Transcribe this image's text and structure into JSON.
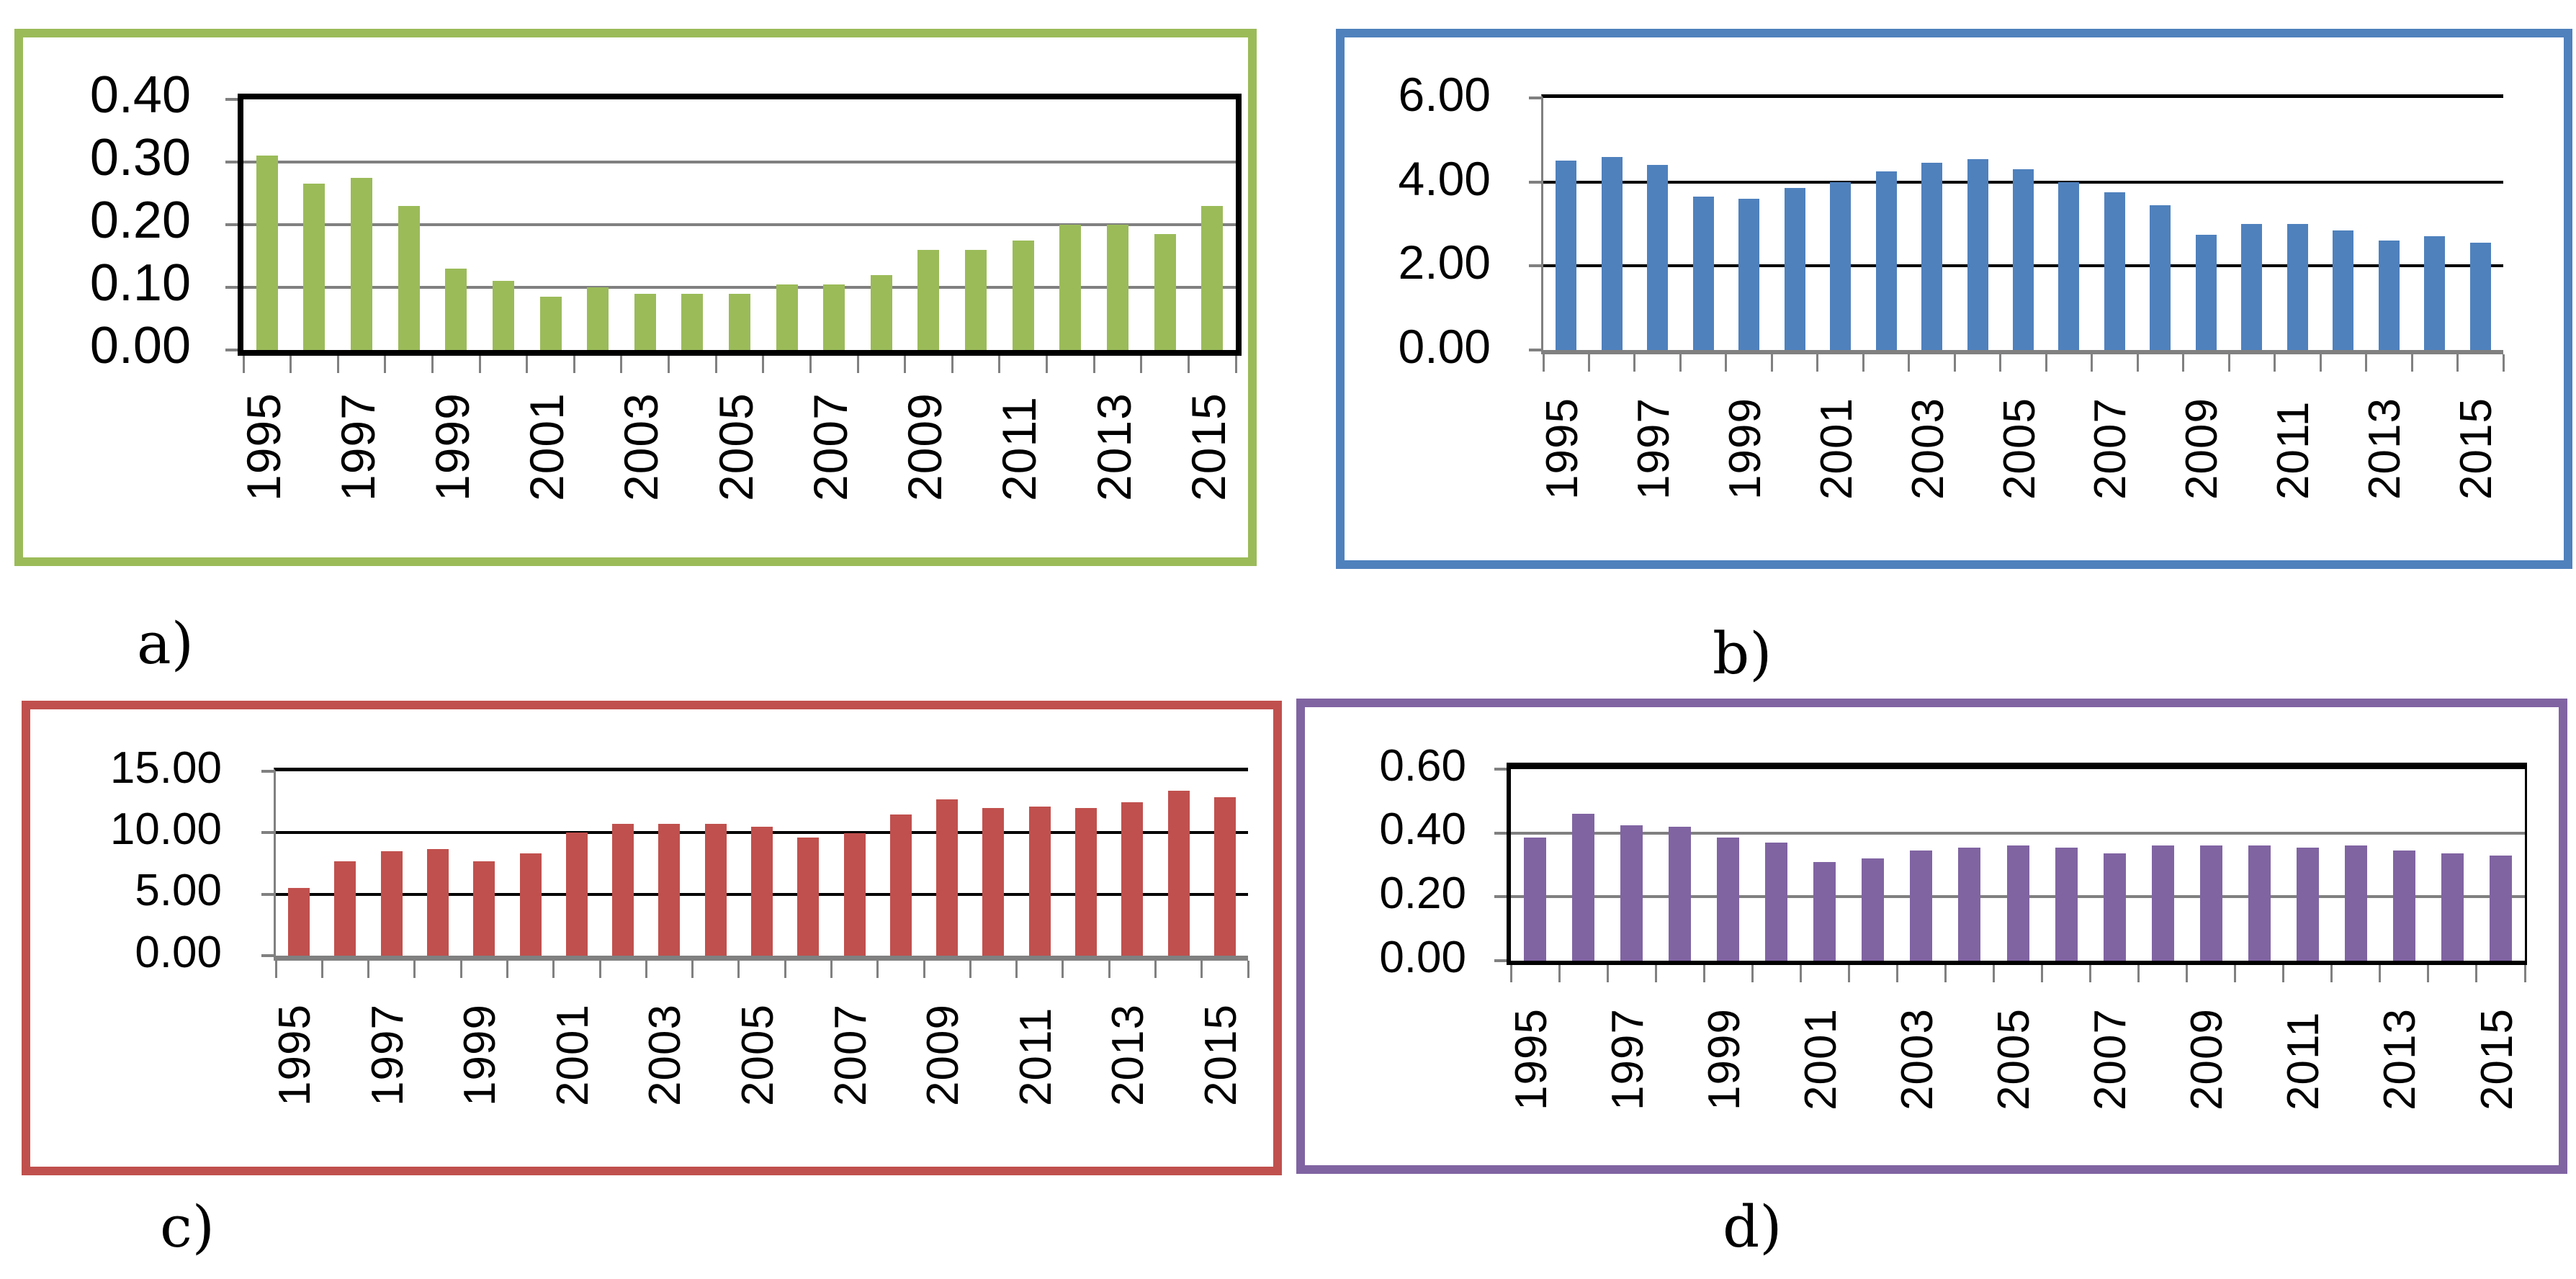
{
  "captions": {
    "a": "a)",
    "b": "b)",
    "c": "c)",
    "d": "d)"
  },
  "chart_data": [
    {
      "id": "a",
      "type": "bar",
      "panel_caption": "a)",
      "bar_color": "#9BBB59",
      "border_color": "#9BBB59",
      "grid_color": "#808080",
      "frame": "black-full",
      "legend": "none",
      "categories": [
        1995,
        1996,
        1997,
        1998,
        1999,
        2000,
        2001,
        2002,
        2003,
        2004,
        2005,
        2006,
        2007,
        2008,
        2009,
        2010,
        2011,
        2012,
        2013,
        2014,
        2015
      ],
      "xtick_labels": [
        "1995",
        "1997",
        "1999",
        "2001",
        "2003",
        "2005",
        "2007",
        "2009",
        "2011",
        "2013",
        "2015"
      ],
      "ylim": [
        0,
        0.4
      ],
      "ytick_values": [
        0,
        0.1,
        0.2,
        0.3,
        0.4
      ],
      "ytick_labels": [
        "0.00",
        "0.10",
        "0.20",
        "0.30",
        "0.40"
      ],
      "values": [
        0.31,
        0.265,
        0.275,
        0.23,
        0.13,
        0.11,
        0.085,
        0.1,
        0.09,
        0.09,
        0.09,
        0.105,
        0.105,
        0.12,
        0.16,
        0.16,
        0.175,
        0.2,
        0.2,
        0.185,
        0.23
      ]
    },
    {
      "id": "b",
      "type": "bar",
      "panel_caption": "b)",
      "bar_color": "#4F81BD",
      "border_color": "#4F81BD",
      "grid_color": "#000000",
      "frame": "top-black",
      "legend": "none",
      "categories": [
        1995,
        1996,
        1997,
        1998,
        1999,
        2000,
        2001,
        2002,
        2003,
        2004,
        2005,
        2006,
        2007,
        2008,
        2009,
        2010,
        2011,
        2012,
        2013,
        2014,
        2015
      ],
      "xtick_labels": [
        "1995",
        "1997",
        "1999",
        "2001",
        "2003",
        "2005",
        "2007",
        "2009",
        "2011",
        "2013",
        "2015"
      ],
      "ylim": [
        0,
        6.0
      ],
      "ytick_values": [
        0,
        2.0,
        4.0,
        6.0
      ],
      "ytick_labels": [
        "0.00",
        "2.00",
        "4.00",
        "6.00"
      ],
      "values": [
        4.5,
        4.6,
        4.4,
        3.65,
        3.6,
        3.85,
        4.0,
        4.25,
        4.45,
        4.55,
        4.3,
        4.0,
        3.75,
        3.45,
        2.75,
        3.0,
        3.0,
        2.85,
        2.6,
        2.7,
        2.55
      ]
    },
    {
      "id": "c",
      "type": "bar",
      "panel_caption": "c)",
      "bar_color": "#C0504D",
      "border_color": "#C0504D",
      "grid_color": "#000000",
      "frame": "top-black",
      "legend": "none",
      "categories": [
        1995,
        1996,
        1997,
        1998,
        1999,
        2000,
        2001,
        2002,
        2003,
        2004,
        2005,
        2006,
        2007,
        2008,
        2009,
        2010,
        2011,
        2012,
        2013,
        2014,
        2015
      ],
      "xtick_labels": [
        "1995",
        "1997",
        "1999",
        "2001",
        "2003",
        "2005",
        "2007",
        "2009",
        "2011",
        "2013",
        "2015"
      ],
      "ylim": [
        0,
        15.0
      ],
      "ytick_values": [
        0,
        5.0,
        10.0,
        15.0
      ],
      "ytick_labels": [
        "0.00",
        "5.00",
        "10.00",
        "15.00"
      ],
      "values": [
        5.5,
        7.7,
        8.5,
        8.7,
        7.7,
        8.3,
        10.0,
        10.7,
        10.7,
        10.7,
        10.5,
        9.6,
        9.95,
        11.5,
        12.7,
        12.0,
        12.1,
        12.0,
        12.5,
        13.4,
        12.9
      ]
    },
    {
      "id": "d",
      "type": "bar",
      "panel_caption": "d)",
      "bar_color": "#8064A2",
      "border_color": "#8064A2",
      "grid_color": "#808080",
      "frame": "black-full",
      "legend": "none",
      "categories": [
        1995,
        1996,
        1997,
        1998,
        1999,
        2000,
        2001,
        2002,
        2003,
        2004,
        2005,
        2006,
        2007,
        2008,
        2009,
        2010,
        2011,
        2012,
        2013,
        2014,
        2015
      ],
      "xtick_labels": [
        "1995",
        "1997",
        "1999",
        "2001",
        "2003",
        "2005",
        "2007",
        "2009",
        "2011",
        "2013",
        "2015"
      ],
      "ylim": [
        0,
        0.6
      ],
      "ytick_values": [
        0,
        0.2,
        0.4,
        0.6
      ],
      "ytick_labels": [
        "0.00",
        "0.20",
        "0.40",
        "0.60"
      ],
      "values": [
        0.385,
        0.46,
        0.425,
        0.42,
        0.385,
        0.37,
        0.31,
        0.32,
        0.345,
        0.355,
        0.36,
        0.355,
        0.335,
        0.36,
        0.36,
        0.36,
        0.355,
        0.36,
        0.345,
        0.335,
        0.33
      ]
    }
  ]
}
